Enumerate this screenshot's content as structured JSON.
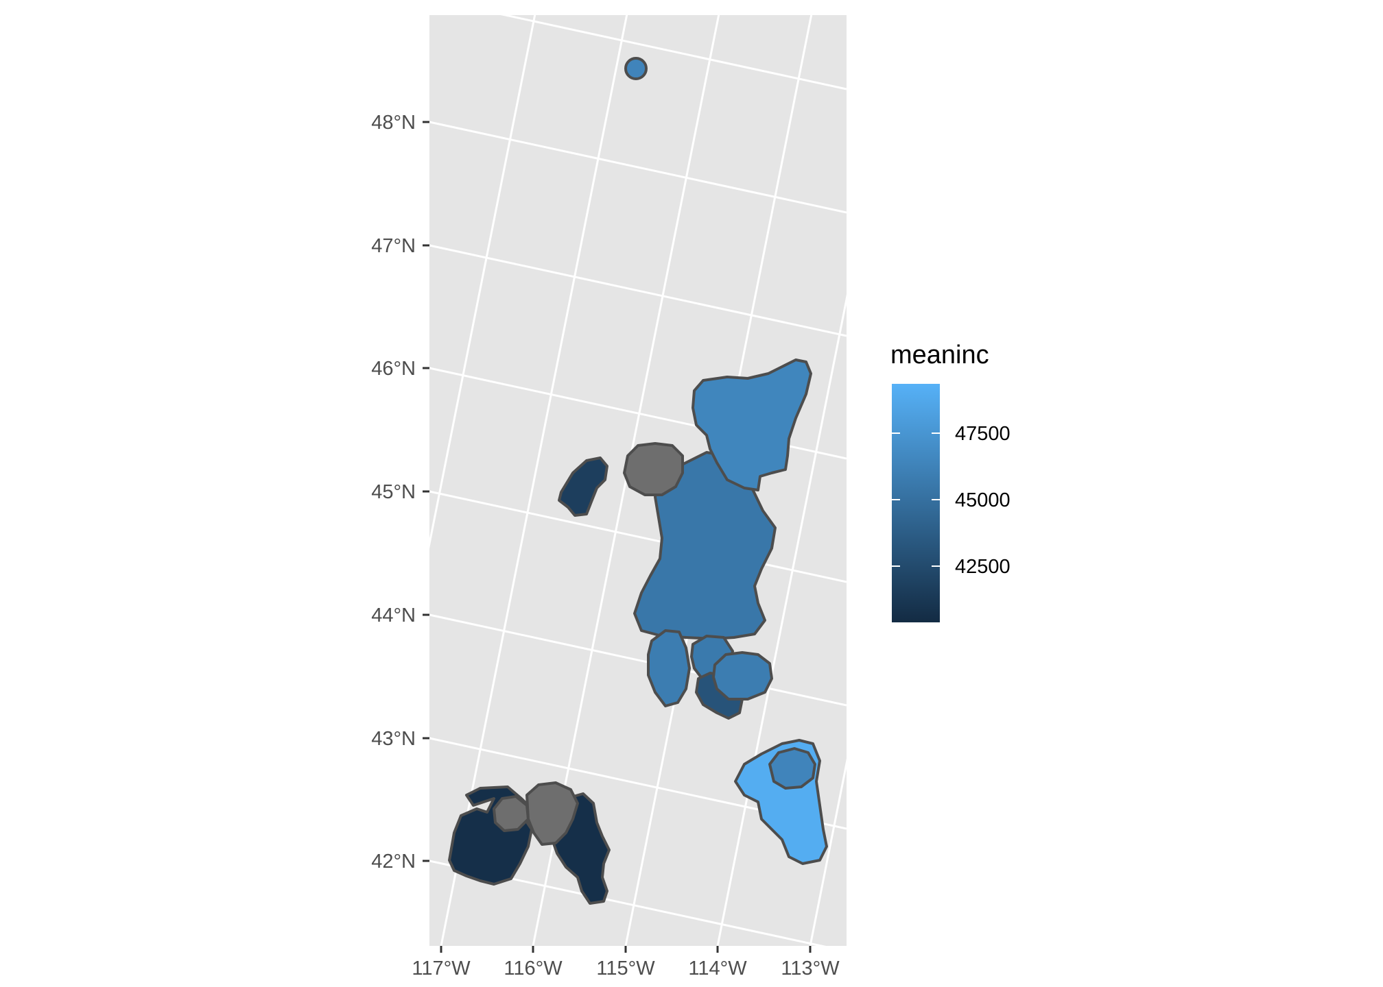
{
  "map": {
    "axes": {
      "latitude_ticks": [
        "48°N",
        "47°N",
        "46°N",
        "45°N",
        "44°N",
        "43°N",
        "42°N"
      ],
      "longitude_ticks": [
        "117°W",
        "116°W",
        "115°W",
        "114°W",
        "113°W"
      ]
    },
    "regions": [
      {
        "name": "north-dot",
        "meaninc": 46500
      },
      {
        "name": "northeast-large",
        "meaninc": 46600
      },
      {
        "name": "central-large",
        "meaninc": 45600
      },
      {
        "name": "west-small",
        "meaninc": 41800
      },
      {
        "name": "gray-center",
        "meaninc": null
      },
      {
        "name": "south-left-small",
        "meaninc": 46000
      },
      {
        "name": "south-center-small",
        "meaninc": 45800
      },
      {
        "name": "south-right-small",
        "meaninc": 46000
      },
      {
        "name": "south-dark-small",
        "meaninc": 43200
      },
      {
        "name": "southwest-dark",
        "meaninc": 40800
      },
      {
        "name": "southwest-gray",
        "meaninc": null
      },
      {
        "name": "southeast-light",
        "meaninc": 49200
      },
      {
        "name": "southeast-inner",
        "meaninc": 46500
      }
    ],
    "na_color": "#6e6e6e",
    "panel_background": "#e5e5e5",
    "gridline_color": "#ffffff"
  },
  "legend": {
    "title": "meaninc",
    "labels": [
      "47500",
      "45000",
      "42500"
    ],
    "breaks": [
      47500,
      45000,
      42500
    ],
    "range": [
      40500,
      49500
    ],
    "low_color": "#132b43",
    "high_color": "#56b1f7"
  }
}
